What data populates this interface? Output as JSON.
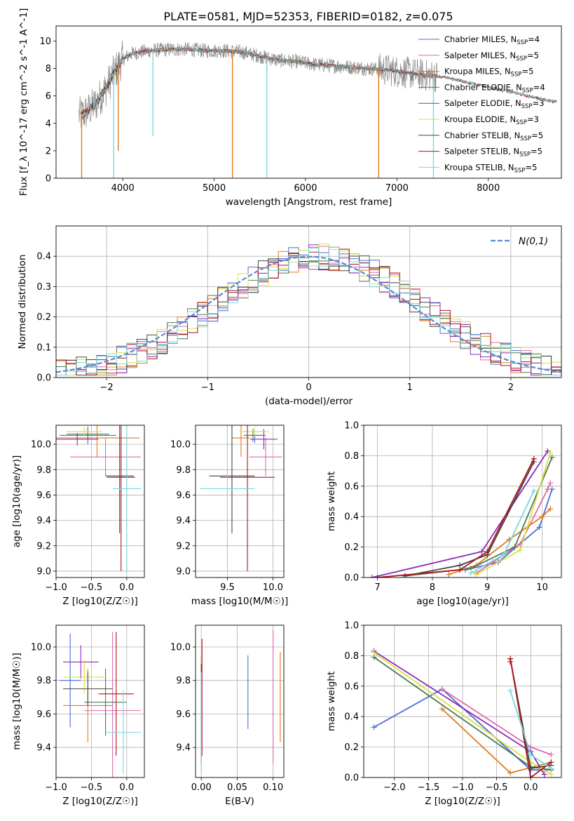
{
  "title": "PLATE=0581, MJD=52353, FIBERID=0182, z=0.075",
  "series": [
    {
      "name": "Chabrier MILES, N_SSP=4",
      "base": "Chabrier MILES, N",
      "sub": "SSP",
      "tail": "=4",
      "color": "#4a6fd0"
    },
    {
      "name": "Salpeter MILES, N_SSP=5",
      "base": "Salpeter MILES, N",
      "sub": "SSP",
      "tail": "=5",
      "color": "#e06aa8"
    },
    {
      "name": "Kroupa MILES, N_SSP=5",
      "base": "Kroupa MILES, N",
      "sub": "SSP",
      "tail": "=5",
      "color": "#e07a20"
    },
    {
      "name": "Chabrier ELODIE, N_SSP=4",
      "base": "Chabrier ELODIE, N",
      "sub": "SSP",
      "tail": "=4",
      "color": "#4f7a55"
    },
    {
      "name": "Salpeter ELODIE, N_SSP=3",
      "base": "Salpeter ELODIE, N",
      "sub": "SSP",
      "tail": "=3",
      "color": "#8a2bb8"
    },
    {
      "name": "Kroupa ELODIE, N_SSP=3",
      "base": "Kroupa ELODIE, N",
      "sub": "SSP",
      "tail": "=3",
      "color": "#d6e045"
    },
    {
      "name": "Chabrier STELIB, N_SSP=5",
      "base": "Chabrier STELIB, N",
      "sub": "SSP",
      "tail": "=5",
      "color": "#444444"
    },
    {
      "name": "Salpeter STELIB, N_SSP=5",
      "base": "Salpeter STELIB, N",
      "sub": "SSP",
      "tail": "=5",
      "color": "#b0141e"
    },
    {
      "name": "Kroupa STELIB, N_SSP=5",
      "base": "Kroupa STELIB, N",
      "sub": "SSP",
      "tail": "=5",
      "color": "#7ad8dc"
    }
  ],
  "chart_data": [
    {
      "id": "spectrum",
      "type": "line",
      "xlabel": "wavelength [Angstrom, rest frame]",
      "ylabel": "Flux [f_λ 10^-17 erg cm^-2 s^-1 A^-1]",
      "xlim": [
        3270,
        8800
      ],
      "ylim": [
        0,
        11.1
      ],
      "xticks": [
        4000,
        5000,
        6000,
        7000,
        8000
      ],
      "yticks": [
        0,
        2,
        4,
        6,
        8,
        10
      ],
      "data_color": "#888888",
      "continuum": {
        "x": [
          3540,
          3600,
          3700,
          3800,
          3900,
          4000,
          4100,
          4200,
          4300,
          4500,
          4700,
          4900,
          5100,
          5300,
          5500,
          5700,
          5900,
          6100,
          6300,
          6500,
          6700,
          6900,
          7100,
          7300,
          7500,
          7700,
          7900,
          8100,
          8300,
          8500,
          8700
        ],
        "y": [
          4.6,
          4.8,
          5.4,
          6.4,
          7.6,
          8.7,
          9.1,
          9.2,
          9.3,
          9.4,
          9.4,
          9.3,
          9.3,
          9.2,
          8.9,
          8.6,
          8.5,
          8.3,
          8.2,
          8.1,
          8.0,
          7.9,
          7.7,
          7.5,
          7.4,
          7.1,
          6.8,
          6.5,
          6.2,
          5.9,
          5.6
        ]
      },
      "dips": [
        {
          "x": 3550,
          "y": 0.0
        },
        {
          "x": 3900,
          "y": 0.0
        },
        {
          "x": 3950,
          "y": 2.0
        },
        {
          "x": 4330,
          "y": 3.1
        },
        {
          "x": 5200,
          "y": 0.0
        },
        {
          "x": 5577,
          "y": 0.0
        },
        {
          "x": 6800,
          "y": 0.0
        },
        {
          "x": 7400,
          "y": 0.0
        }
      ]
    },
    {
      "id": "residuals",
      "type": "histogram",
      "xlabel": "(data-model)/error",
      "ylabel": "Normed distribution",
      "xlim": [
        -2.5,
        2.5
      ],
      "ylim": [
        0,
        0.5
      ],
      "xticks": [
        -2,
        -1,
        0,
        1,
        2
      ],
      "yticks": [
        0,
        0.1,
        0.2,
        0.3,
        0.4
      ],
      "normal_label": "N(0,1)",
      "bin_width": 0.1,
      "bin_start": -2.5
    },
    {
      "id": "age-vs-metallicity",
      "type": "errorbar",
      "xlabel": "Z [log10(Z/Z☉)]",
      "ylabel": "age [log10(age/yr)]",
      "xlim": [
        -1.0,
        0.25
      ],
      "ylim": [
        8.95,
        10.15
      ],
      "xticks": [
        -1.0,
        -0.5,
        0.0
      ],
      "yticks": [
        9.0,
        9.2,
        9.4,
        9.6,
        9.8,
        10.0
      ],
      "points": [
        {
          "s": 0,
          "x": -0.55,
          "y": 10.07,
          "xerr": 0.4,
          "yerr": 0.07
        },
        {
          "s": 1,
          "x": -0.3,
          "y": 9.9,
          "xerr": 0.5,
          "yerr": 0.15
        },
        {
          "s": 2,
          "x": -0.42,
          "y": 10.05,
          "xerr": 0.6,
          "yerr": 0.15
        },
        {
          "s": 3,
          "x": -0.55,
          "y": 10.08,
          "xerr": 0.3,
          "yerr": 0.04
        },
        {
          "s": 4,
          "x": -0.7,
          "y": 10.04,
          "xerr": 0.3,
          "yerr": 0.05
        },
        {
          "s": 5,
          "x": -0.6,
          "y": 10.1,
          "xerr": 0.25,
          "yerr": 0.03
        },
        {
          "s": 6,
          "x": -0.1,
          "y": 9.75,
          "xerr": 0.2,
          "yerr": 0.45
        },
        {
          "s": 7,
          "x": -0.08,
          "y": 9.74,
          "xerr": 0.2,
          "yerr": 0.74
        },
        {
          "s": 8,
          "x": 0.0,
          "y": 9.65,
          "xerr": 0.2,
          "yerr": 0.65
        }
      ]
    },
    {
      "id": "age-vs-mass",
      "type": "errorbar",
      "xlabel": "mass [log10(M/M☉)]",
      "ylabel": "",
      "xlim": [
        9.15,
        10.12
      ],
      "ylim": [
        8.95,
        10.15
      ],
      "xticks": [
        9.5,
        10.0
      ],
      "yticks": [
        9.0,
        9.2,
        9.4,
        9.6,
        9.8,
        10.0
      ],
      "points": [
        {
          "s": 0,
          "x": 9.8,
          "y": 10.07,
          "xerr": 0.12,
          "yerr": 0.06
        },
        {
          "s": 1,
          "x": 9.92,
          "y": 9.9,
          "xerr": 0.18,
          "yerr": 0.15
        },
        {
          "s": 2,
          "x": 9.65,
          "y": 10.05,
          "xerr": 0.1,
          "yerr": 0.15
        },
        {
          "s": 3,
          "x": 9.78,
          "y": 10.07,
          "xerr": 0.1,
          "yerr": 0.05
        },
        {
          "s": 4,
          "x": 9.9,
          "y": 10.04,
          "xerr": 0.15,
          "yerr": 0.08
        },
        {
          "s": 5,
          "x": 9.8,
          "y": 10.1,
          "xerr": 0.15,
          "yerr": 0.03
        },
        {
          "s": 6,
          "x": 9.55,
          "y": 9.75,
          "xerr": 0.25,
          "yerr": 0.45
        },
        {
          "s": 7,
          "x": 9.72,
          "y": 9.74,
          "xerr": 0.3,
          "yerr": 0.74
        },
        {
          "s": 8,
          "x": 9.5,
          "y": 9.65,
          "xerr": 0.3,
          "yerr": 0.65
        }
      ]
    },
    {
      "id": "mass-weight-vs-age",
      "type": "line",
      "xlabel": "age [log10(age/yr)]",
      "ylabel": "mass weight",
      "xlim": [
        6.75,
        10.35
      ],
      "ylim": [
        0,
        1.0
      ],
      "xticks": [
        7,
        8,
        9,
        10
      ],
      "yticks": [
        0.0,
        0.2,
        0.4,
        0.6,
        0.8,
        1.0
      ],
      "lines": [
        {
          "s": 0,
          "x": [
            8.6,
            9.2,
            9.95,
            10.18
          ],
          "y": [
            0.05,
            0.1,
            0.33,
            0.58
          ]
        },
        {
          "s": 1,
          "x": [
            8.8,
            9.1,
            9.6,
            10.1,
            10.15
          ],
          "y": [
            0.03,
            0.1,
            0.22,
            0.58,
            0.62
          ]
        },
        {
          "s": 2,
          "x": [
            8.3,
            8.8,
            9.4,
            10.0,
            10.15
          ],
          "y": [
            0.02,
            0.08,
            0.25,
            0.4,
            0.45
          ]
        },
        {
          "s": 3,
          "x": [
            7.5,
            8.7,
            9.5,
            10.18
          ],
          "y": [
            0.01,
            0.06,
            0.2,
            0.79
          ]
        },
        {
          "s": 4,
          "x": [
            6.9,
            8.9,
            10.1
          ],
          "y": [
            0.0,
            0.17,
            0.83
          ]
        },
        {
          "s": 5,
          "x": [
            8.8,
            9.6,
            10.15
          ],
          "y": [
            0.02,
            0.18,
            0.82
          ]
        },
        {
          "s": 6,
          "x": [
            7.5,
            8.5,
            9.0,
            9.85
          ],
          "y": [
            0.01,
            0.08,
            0.15,
            0.76
          ]
        },
        {
          "s": 7,
          "x": [
            7.0,
            8.5,
            9.0,
            9.85
          ],
          "y": [
            0.0,
            0.05,
            0.17,
            0.78
          ]
        },
        {
          "s": 8,
          "x": [
            8.7,
            9.3,
            9.85
          ],
          "y": [
            0.03,
            0.15,
            0.57
          ]
        }
      ]
    },
    {
      "id": "mass-vs-metallicity",
      "type": "errorbar",
      "xlabel": "Z [log10(Z/Z☉)]",
      "ylabel": "mass [log10(M/M☉)]",
      "xlim": [
        -1.0,
        0.25
      ],
      "ylim": [
        9.22,
        10.13
      ],
      "xticks": [
        -1.0,
        -0.5,
        0.0
      ],
      "yticks": [
        9.4,
        9.6,
        9.8,
        10.0
      ],
      "points": [
        {
          "s": 0,
          "x": -0.8,
          "y": 9.8,
          "xerr": 0.15,
          "yerr": 0.28
        },
        {
          "s": 1,
          "x": -0.2,
          "y": 9.62,
          "xerr": 0.4,
          "yerr": 0.47
        },
        {
          "s": 2,
          "x": -0.55,
          "y": 9.65,
          "xerr": 0.35,
          "yerr": 0.22
        },
        {
          "s": 3,
          "x": -0.3,
          "y": 9.67,
          "xerr": 0.3,
          "yerr": 0.2
        },
        {
          "s": 4,
          "x": -0.65,
          "y": 9.91,
          "xerr": 0.25,
          "yerr": 0.1
        },
        {
          "s": 5,
          "x": -0.6,
          "y": 9.82,
          "xerr": 0.3,
          "yerr": 0.1
        },
        {
          "s": 6,
          "x": -0.55,
          "y": 9.75,
          "xerr": 0.35,
          "yerr": 0.1
        },
        {
          "s": 7,
          "x": -0.15,
          "y": 9.72,
          "xerr": 0.25,
          "yerr": 0.37
        },
        {
          "s": 8,
          "x": -0.05,
          "y": 9.49,
          "xerr": 0.25,
          "yerr": 0.25
        }
      ]
    },
    {
      "id": "mass-vs-extinction",
      "type": "errorbar",
      "xlabel": "E(B-V)",
      "ylabel": "",
      "xlim": [
        -0.008,
        0.115
      ],
      "ylim": [
        9.22,
        10.13
      ],
      "xticks": [
        0.0,
        0.05,
        0.1
      ],
      "yticks": [
        9.4,
        9.6,
        9.8,
        10.0
      ],
      "points": [
        {
          "s": 0,
          "x": 0.065,
          "y": 9.73,
          "xerr": 0,
          "yerr": 0.22
        },
        {
          "s": 1,
          "x": 0.1,
          "y": 9.7,
          "xerr": 0,
          "yerr": 0.4
        },
        {
          "s": 2,
          "x": 0.11,
          "y": 9.7,
          "xerr": 0,
          "yerr": 0.27
        },
        {
          "s": 3,
          "x": 0.0,
          "y": 9.7,
          "xerr": 0,
          "yerr": 0.25
        },
        {
          "s": 4,
          "x": 0.0,
          "y": 9.85,
          "xerr": 0,
          "yerr": 0.1
        },
        {
          "s": 5,
          "x": 0.0,
          "y": 9.8,
          "xerr": 0,
          "yerr": 0.15
        },
        {
          "s": 6,
          "x": 0.0,
          "y": 9.6,
          "xerr": 0,
          "yerr": 0.3
        },
        {
          "s": 7,
          "x": 0.001,
          "y": 9.7,
          "xerr": 0,
          "yerr": 0.35
        },
        {
          "s": 8,
          "x": 0.0,
          "y": 9.55,
          "xerr": 0,
          "yerr": 0.3
        }
      ]
    },
    {
      "id": "mass-weight-vs-metallicity",
      "type": "line",
      "xlabel": "Z [log10(Z/Z☉)]",
      "ylabel": "mass weight",
      "xlim": [
        -2.45,
        0.45
      ],
      "ylim": [
        0,
        1.0
      ],
      "xticks": [
        -2.0,
        -1.5,
        -1.0,
        -0.5,
        0.0
      ],
      "yticks": [
        0.0,
        0.2,
        0.4,
        0.6,
        0.8,
        1.0
      ],
      "lines": [
        {
          "s": 0,
          "x": [
            -2.3,
            -1.3,
            0.0,
            0.3
          ],
          "y": [
            0.33,
            0.58,
            0.05,
            0.05
          ]
        },
        {
          "s": 1,
          "x": [
            -1.3,
            0.0,
            0.3
          ],
          "y": [
            0.58,
            0.2,
            0.15
          ]
        },
        {
          "s": 2,
          "x": [
            -1.3,
            -0.3,
            0.3
          ],
          "y": [
            0.45,
            0.03,
            0.1
          ]
        },
        {
          "s": 3,
          "x": [
            -2.3,
            0.0,
            0.3
          ],
          "y": [
            0.79,
            0.07,
            0.05
          ]
        },
        {
          "s": 4,
          "x": [
            -2.3,
            0.0,
            0.2
          ],
          "y": [
            0.83,
            0.17,
            0.02
          ]
        },
        {
          "s": 5,
          "x": [
            -2.3,
            0.0,
            0.3
          ],
          "y": [
            0.82,
            0.1,
            0.02
          ]
        },
        {
          "s": 6,
          "x": [
            -0.3,
            0.0,
            0.3
          ],
          "y": [
            0.78,
            0.06,
            0.08
          ]
        },
        {
          "s": 7,
          "x": [
            -0.3,
            -0.3,
            0.0,
            0.3
          ],
          "y": [
            0.76,
            0.78,
            0.0,
            0.1
          ]
        },
        {
          "s": 8,
          "x": [
            -0.3,
            0.0,
            0.3
          ],
          "y": [
            0.57,
            0.15,
            0.06
          ]
        }
      ]
    }
  ]
}
